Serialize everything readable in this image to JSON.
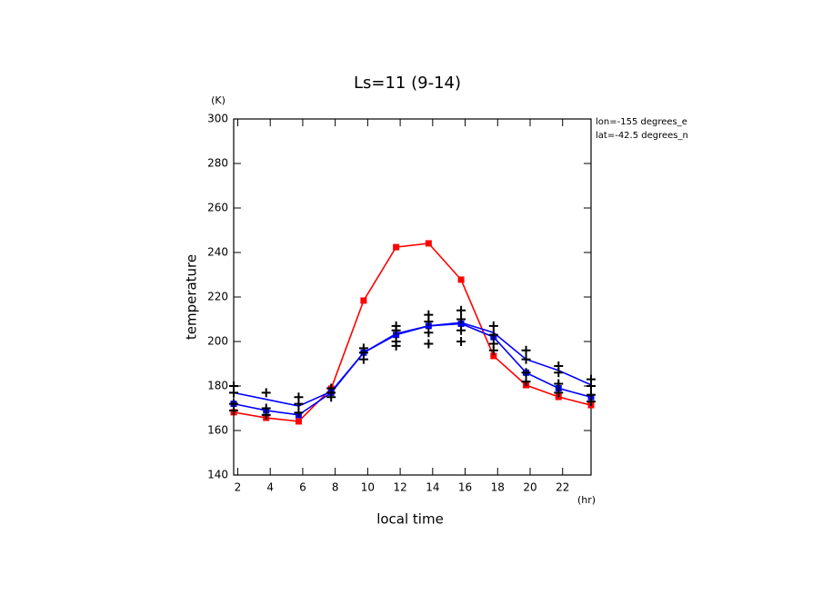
{
  "chart_data": {
    "type": "line",
    "title": "Ls=11 (9-14)",
    "y_unit": "(K)",
    "x_unit": "(hr)",
    "ylabel": "temperature",
    "xlabel": "local time",
    "annotations": [
      "lon=-155 degrees_e",
      "lat=-42.5 degrees_n"
    ],
    "x": [
      1.75,
      3.75,
      5.75,
      7.75,
      9.75,
      11.75,
      13.75,
      15.75,
      17.75,
      19.75,
      21.75,
      23.75
    ],
    "xlim": [
      1.75,
      23.75
    ],
    "xticks": [
      2,
      4,
      6,
      8,
      10,
      12,
      14,
      16,
      18,
      20,
      22
    ],
    "ylim": [
      140,
      300
    ],
    "yticks": [
      140,
      160,
      180,
      200,
      220,
      240,
      260,
      280,
      300
    ],
    "series": [
      {
        "color": "#ff0000",
        "marker": "square",
        "values": [
          168.2,
          165.7,
          164.1,
          178.8,
          218.4,
          242.4,
          244.1,
          227.8,
          193.5,
          180.4,
          175.1,
          171.4
        ]
      },
      {
        "color": "#0000ff",
        "marker": "none",
        "values": [
          177,
          174,
          171,
          177.5,
          195,
          203.5,
          207,
          208.5,
          204,
          192,
          187,
          180.5
        ]
      },
      {
        "color": "#0000ff",
        "marker": "square",
        "values": [
          172,
          169,
          167,
          177,
          195,
          203,
          207,
          208,
          202,
          186,
          179,
          175
        ]
      },
      {
        "color": "#000000",
        "marker": "cross",
        "line": false,
        "x": [
          1.75,
          1.75,
          1.75,
          1.75,
          3.75,
          3.75,
          3.75,
          5.75,
          5.75,
          5.75,
          7.75,
          7.75,
          7.75,
          9.75,
          9.75,
          9.75,
          11.75,
          11.75,
          11.75,
          11.75,
          13.75,
          13.75,
          13.75,
          13.75,
          15.75,
          15.75,
          15.75,
          15.75,
          17.75,
          17.75,
          17.75,
          17.75,
          19.75,
          19.75,
          19.75,
          19.75,
          21.75,
          21.75,
          21.75,
          21.75,
          23.75,
          23.75,
          23.75,
          23.75
        ],
        "values": [
          180,
          177,
          172,
          169,
          177,
          170,
          167,
          175,
          172,
          168,
          179,
          177,
          175,
          197,
          195,
          192,
          207,
          205,
          200,
          198,
          212,
          209,
          204,
          199,
          214,
          210,
          205,
          200,
          207,
          203,
          199,
          196,
          196,
          192,
          186,
          182,
          189,
          186,
          181,
          177,
          183,
          180,
          176,
          173
        ]
      }
    ]
  }
}
